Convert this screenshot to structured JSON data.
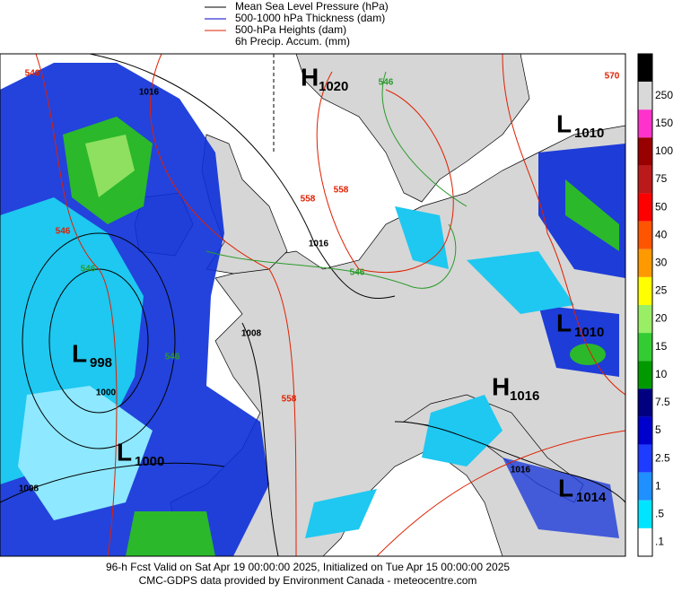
{
  "header": {
    "legend": [
      "Mean Sea Level Pressure (hPa)",
      "500-1000 hPa Thickness (dam)",
      "500-hPa Heights (dam)",
      "6h Precip. Accum. (mm)"
    ]
  },
  "map": {
    "centers": [
      {
        "letter": "H",
        "value": "1020"
      },
      {
        "letter": "L",
        "value": "1010"
      },
      {
        "letter": "L",
        "value": "1010"
      },
      {
        "letter": "L",
        "value": "998"
      },
      {
        "letter": "H",
        "value": "1016"
      },
      {
        "letter": "L",
        "value": "1000"
      },
      {
        "letter": "L",
        "value": "1014"
      }
    ],
    "contour_labels": [
      "546",
      "1016",
      "570",
      "546",
      "558",
      "558",
      "1016",
      "546",
      "546",
      "1008",
      "1000",
      "558",
      "546",
      "1008",
      "1016",
      "546"
    ]
  },
  "colorbar": {
    "labels": [
      "250",
      "150",
      "100",
      "75",
      "50",
      "40",
      "30",
      "25",
      "20",
      "15",
      "10",
      "7.5",
      "5",
      "2.5",
      "1",
      ".5",
      ".1"
    ]
  },
  "footer": [
    "96-h Fcst Valid on Sat Apr 19 00:00:00 2025, Initialized on Tue Apr 15 00:00:00 2025",
    "CMC-GDPS data provided by Environment Canada - meteocentre.com"
  ]
}
